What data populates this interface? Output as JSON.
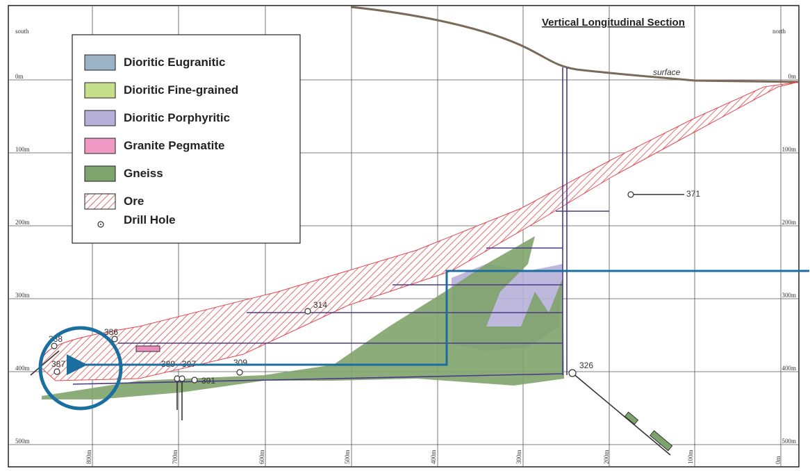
{
  "header": {
    "title": "Vertical Longitudinal Section",
    "south": "south",
    "north": "north",
    "surface": "surface"
  },
  "depth_labels_left": [
    "0m",
    "100m",
    "200m",
    "300m",
    "400m",
    "500m"
  ],
  "depth_labels_right": [
    "0m",
    "100m",
    "200m",
    "300m",
    "400m",
    "500m"
  ],
  "distance_labels": [
    "800m",
    "700m",
    "600m",
    "500m",
    "400m",
    "300m",
    "200m",
    "100m",
    "0m"
  ],
  "legend": {
    "items": [
      {
        "label": "Dioritic Eugranitic"
      },
      {
        "label": "Dioritic Fine-grained"
      },
      {
        "label": "Dioritic Porphyritic"
      },
      {
        "label": "Granite Pegmatite"
      },
      {
        "label": "Gneiss"
      },
      {
        "label": "Ore"
      },
      {
        "label": "Drill Hole"
      }
    ]
  },
  "drill_holes": [
    {
      "label": "371"
    },
    {
      "label": "314"
    },
    {
      "label": "326"
    },
    {
      "label": "388"
    },
    {
      "label": "387"
    },
    {
      "label": "386"
    },
    {
      "label": "389"
    },
    {
      "label": "307"
    },
    {
      "label": "391"
    },
    {
      "label": "309"
    }
  ]
}
